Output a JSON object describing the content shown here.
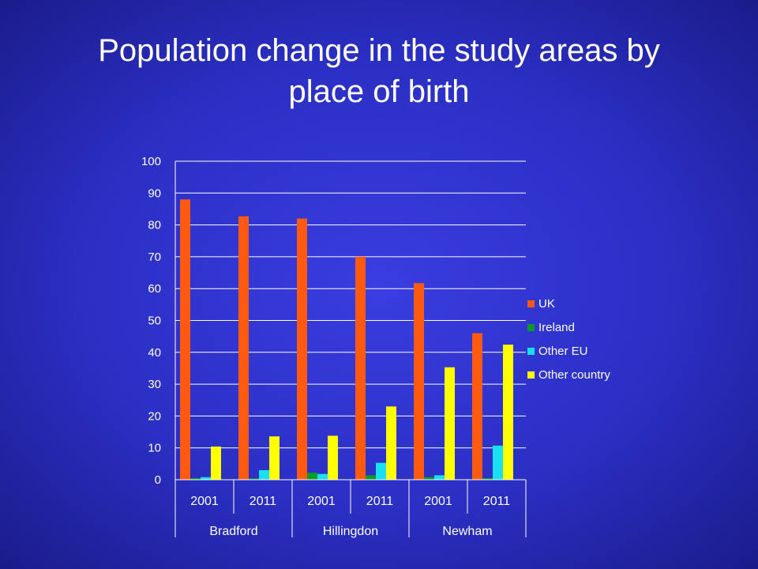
{
  "slide": {
    "title_line1": "Population change in the study areas by",
    "title_line2": "place of birth"
  },
  "colors": {
    "UK": "#ff5a10",
    "Ireland": "#0a9a28",
    "Other EU": "#19e0f0",
    "Other country": "#ffff00",
    "gridline": "#ffffff"
  },
  "chart_data": {
    "type": "bar",
    "title": "",
    "xlabel": "",
    "ylabel": "",
    "ylim": [
      0,
      100
    ],
    "yticks": [
      0,
      10,
      20,
      30,
      40,
      50,
      60,
      70,
      80,
      90,
      100
    ],
    "categories": [
      "2001",
      "2011",
      "2001",
      "2011",
      "2001",
      "2011"
    ],
    "groups": [
      {
        "label": "Bradford",
        "categories": [
          "2001",
          "2011"
        ]
      },
      {
        "label": "Hillingdon",
        "categories": [
          "2001",
          "2011"
        ]
      },
      {
        "label": "Newham",
        "categories": [
          "2001",
          "2011"
        ]
      }
    ],
    "series": [
      {
        "name": "UK",
        "values": [
          88,
          82.7,
          82,
          70,
          61.7,
          46
        ]
      },
      {
        "name": "Ireland",
        "values": [
          0.5,
          0.4,
          2.2,
          1.4,
          0.8,
          0.5
        ]
      },
      {
        "name": "Other EU",
        "values": [
          0.8,
          3,
          1.8,
          5.3,
          1.4,
          10.7
        ]
      },
      {
        "name": "Other country",
        "values": [
          10.4,
          13.6,
          13.8,
          23,
          35.3,
          42.4
        ]
      }
    ],
    "grid": true,
    "legend_position": "right"
  }
}
